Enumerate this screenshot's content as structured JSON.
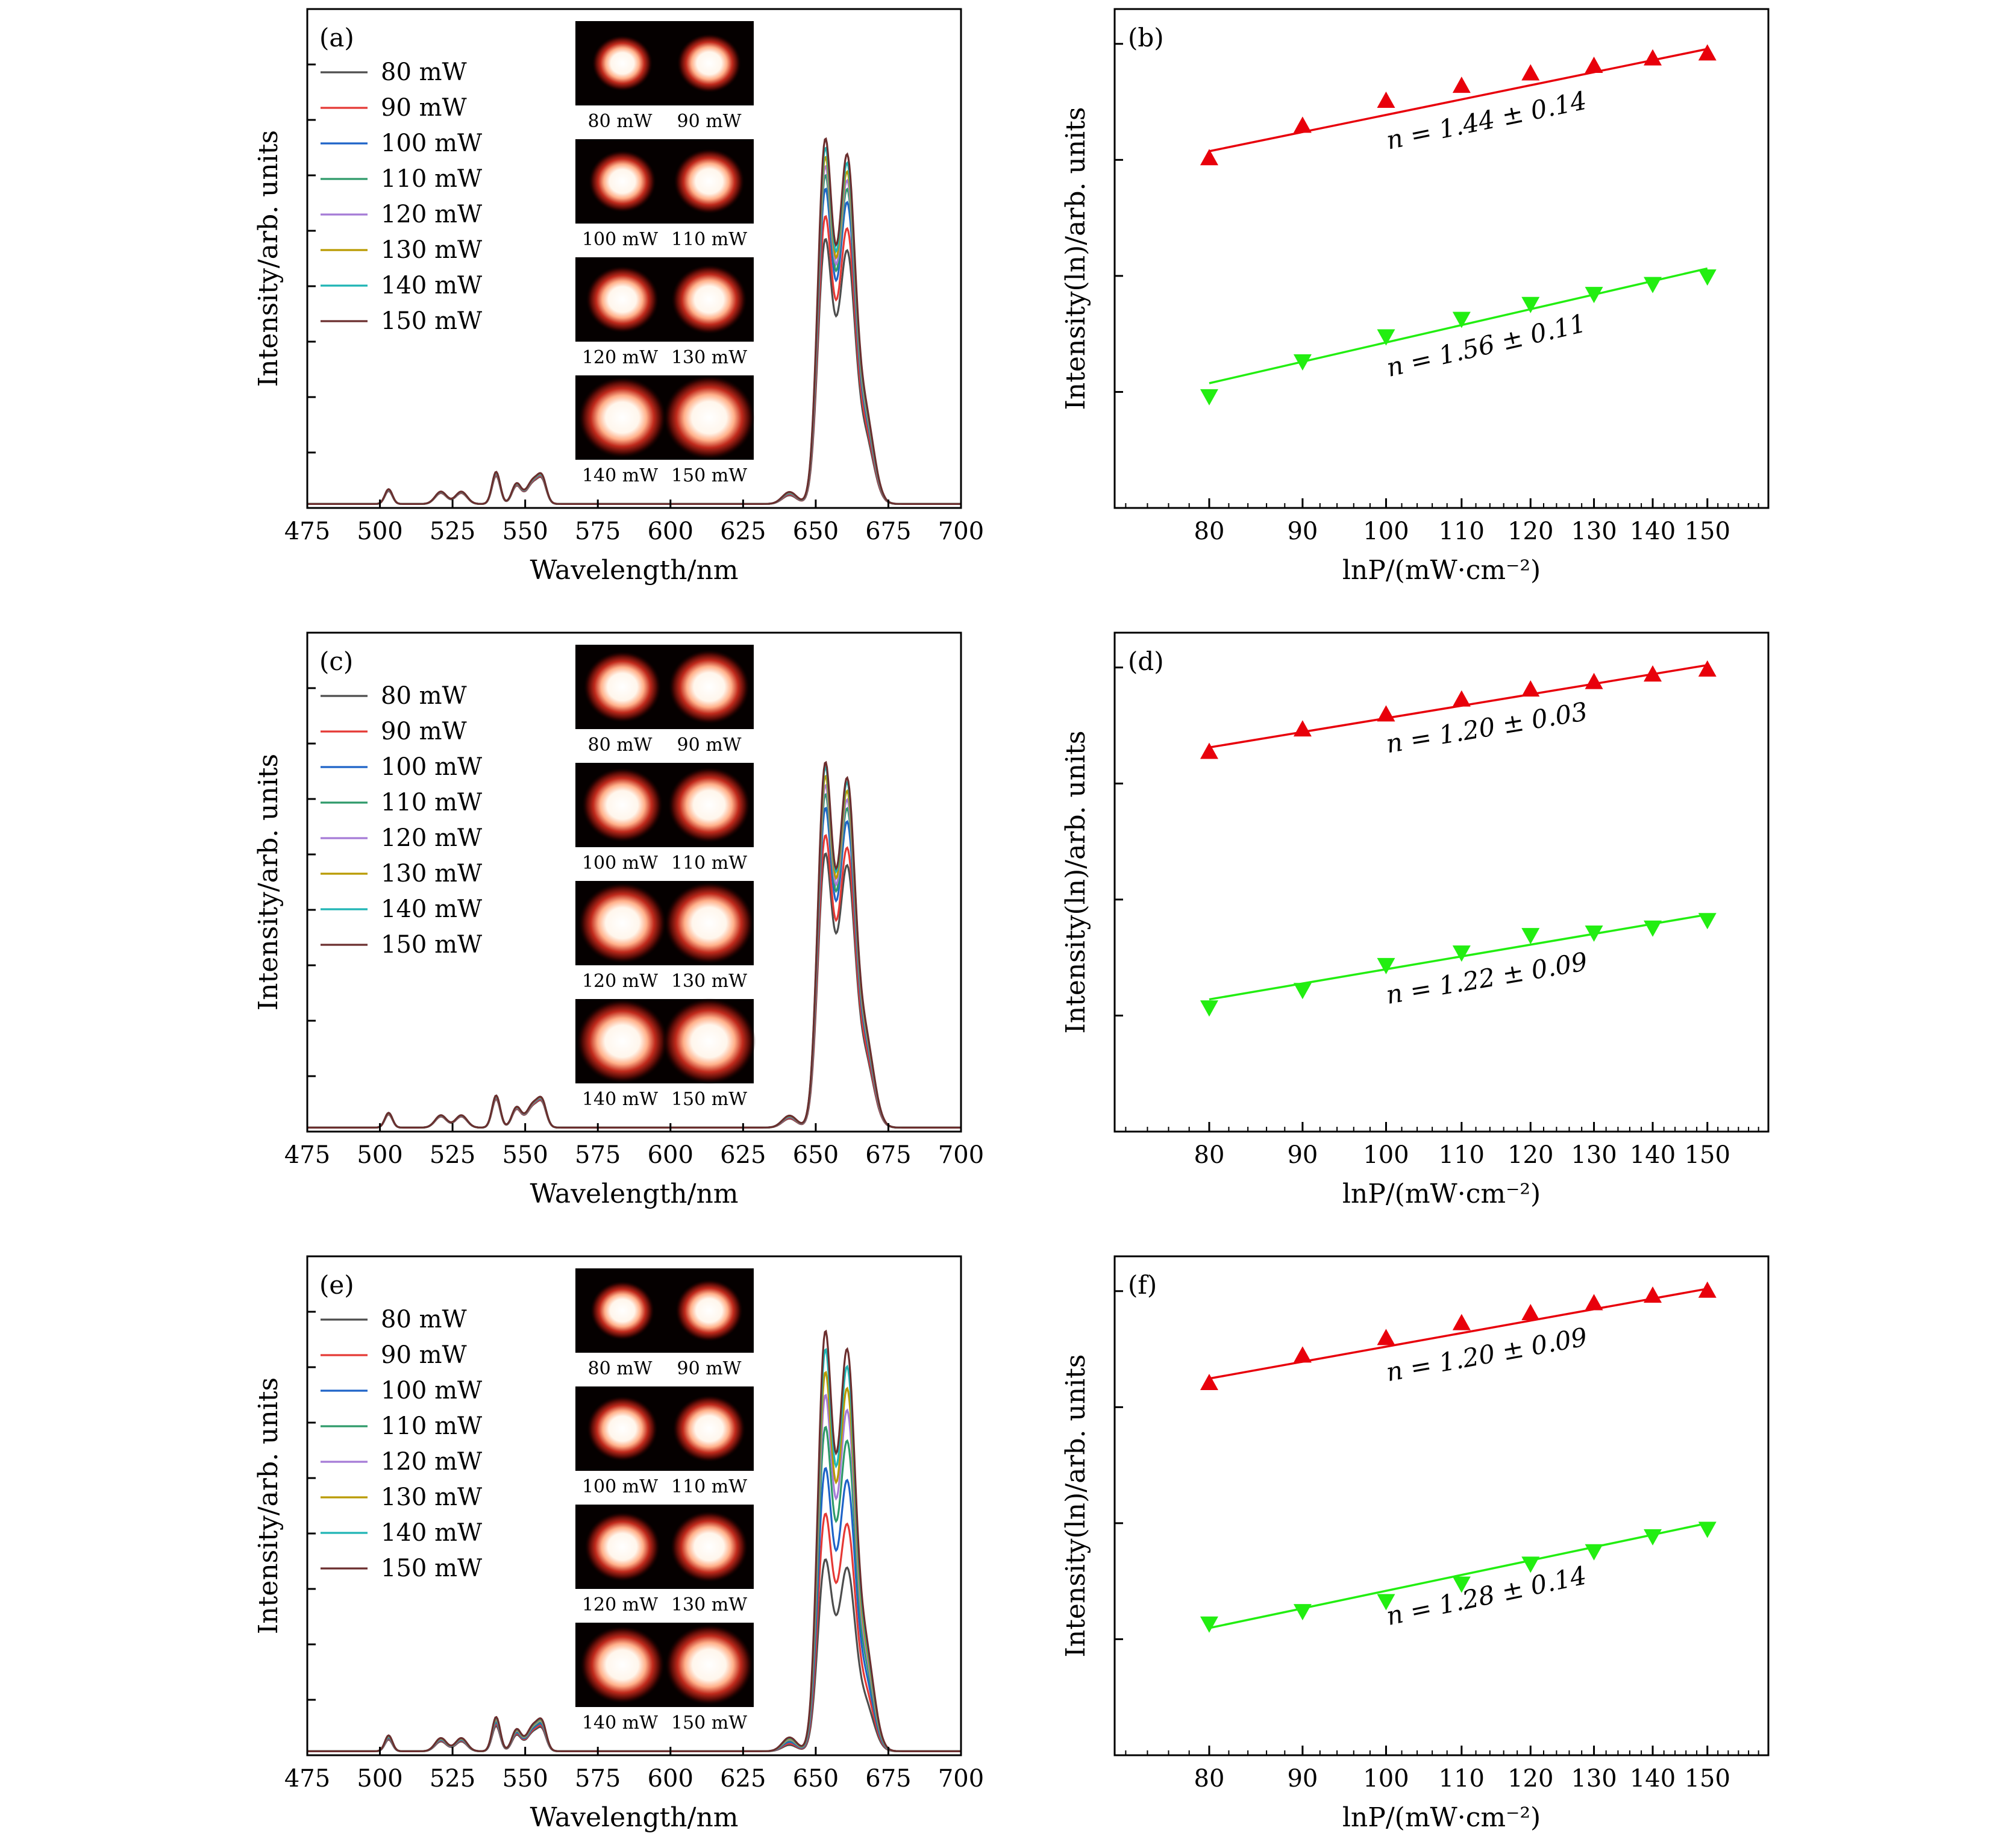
{
  "chart_data": [
    {
      "panel": "(a)",
      "type": "line",
      "xlabel": "Wavelength/nm",
      "ylabel": "Intensity/arb. units",
      "xlim": [
        475,
        700
      ],
      "xticks": [
        475,
        500,
        525,
        550,
        575,
        600,
        625,
        650,
        675,
        700
      ],
      "ylim": [
        0,
        1
      ],
      "y_minor_tick_count": 8,
      "legend_position": "upper-left",
      "series": [
        {
          "name": "80 mW",
          "color": "#4d4d4d",
          "peak_scale": 0.58
        },
        {
          "name": "90 mW",
          "color": "#e53935",
          "peak_scale": 0.63
        },
        {
          "name": "100 mW",
          "color": "#1e63c8",
          "peak_scale": 0.69
        },
        {
          "name": "110 mW",
          "color": "#2e9a6a",
          "peak_scale": 0.72
        },
        {
          "name": "120 mW",
          "color": "#a57bd6",
          "peak_scale": 0.74
        },
        {
          "name": "130 mW",
          "color": "#b99a00",
          "peak_scale": 0.76
        },
        {
          "name": "140 mW",
          "color": "#1fb5b5",
          "peak_scale": 0.78
        },
        {
          "name": "150 mW",
          "color": "#6b2e2e",
          "peak_scale": 0.8
        }
      ],
      "peaks": [
        {
          "center": 503,
          "width": 1.3,
          "height": 0.03
        },
        {
          "center": 521,
          "width": 2.0,
          "height": 0.025
        },
        {
          "center": 528,
          "width": 2.0,
          "height": 0.025
        },
        {
          "center": 540,
          "width": 1.4,
          "height": 0.065
        },
        {
          "center": 547,
          "width": 1.6,
          "height": 0.04
        },
        {
          "center": 553,
          "width": 2.4,
          "height": 0.05
        },
        {
          "center": 556,
          "width": 1.4,
          "height": 0.035
        },
        {
          "center": 641,
          "width": 2.5,
          "height": 0.03
        },
        {
          "center": 653,
          "width": 2.4,
          "height": 0.84
        },
        {
          "center": 657,
          "width": 2.6,
          "height": 0.2
        },
        {
          "center": 661,
          "width": 2.6,
          "height": 0.78
        },
        {
          "center": 667,
          "width": 3.0,
          "height": 0.22
        }
      ],
      "inset": {
        "image_labels": [
          [
            "80 mW",
            "90 mW"
          ],
          [
            "100 mW",
            "110 mW"
          ],
          [
            "120 mW",
            "130 mW"
          ],
          [
            "140 mW",
            "150 mW"
          ]
        ],
        "glow": [
          0.9,
          0.95,
          1.0,
          1.05,
          1.08,
          1.12,
          1.3,
          1.35
        ]
      }
    },
    {
      "panel": "(b)",
      "type": "scatter",
      "xlabel": "lnP/(mW·cm⁻²)",
      "ylabel": "Intensity(ln)/arb. units",
      "x_scale": "log",
      "xlim": [
        71,
        162
      ],
      "xticks": [
        80,
        90,
        100,
        110,
        120,
        130,
        140,
        150
      ],
      "ylim": [
        0,
        1
      ],
      "y_minor_tick_count": 4,
      "series": [
        {
          "name": "",
          "marker": "triangle-up",
          "color": "#e8000b",
          "x": [
            80,
            90,
            100,
            110,
            120,
            130,
            140,
            150
          ],
          "y": [
            0.7,
            0.765,
            0.815,
            0.845,
            0.87,
            0.885,
            0.9,
            0.91
          ],
          "fit": [
            0.715,
            0.92
          ],
          "slope_text": "n = 1.44 ± 0.14"
        },
        {
          "name": "",
          "marker": "triangle-down",
          "color": "#22ee11",
          "x": [
            80,
            90,
            100,
            110,
            120,
            130,
            140,
            150
          ],
          "y": [
            0.225,
            0.295,
            0.345,
            0.38,
            0.41,
            0.43,
            0.45,
            0.465
          ],
          "fit": [
            0.25,
            0.48
          ],
          "slope_text": "n = 1.56 ± 0.11"
        }
      ]
    },
    {
      "panel": "(c)",
      "type": "line",
      "xlabel": "Wavelength/nm",
      "ylabel": "Intensity/arb. units",
      "xlim": [
        475,
        700
      ],
      "xticks": [
        475,
        500,
        525,
        550,
        575,
        600,
        625,
        650,
        675,
        700
      ],
      "ylim": [
        0,
        1
      ],
      "y_minor_tick_count": 8,
      "legend_position": "upper-left",
      "series": [
        {
          "name": "80 mW",
          "color": "#4d4d4d",
          "peak_scale": 0.6
        },
        {
          "name": "90 mW",
          "color": "#e53935",
          "peak_scale": 0.64
        },
        {
          "name": "100 mW",
          "color": "#1e63c8",
          "peak_scale": 0.7
        },
        {
          "name": "110 mW",
          "color": "#2e9a6a",
          "peak_scale": 0.73
        },
        {
          "name": "120 mW",
          "color": "#a57bd6",
          "peak_scale": 0.75
        },
        {
          "name": "130 mW",
          "color": "#b99a00",
          "peak_scale": 0.77
        },
        {
          "name": "140 mW",
          "color": "#1fb5b5",
          "peak_scale": 0.79
        },
        {
          "name": "150 mW",
          "color": "#6b2e2e",
          "peak_scale": 0.8
        }
      ],
      "peaks": [
        {
          "center": 503,
          "width": 1.3,
          "height": 0.03
        },
        {
          "center": 521,
          "width": 2.0,
          "height": 0.025
        },
        {
          "center": 528,
          "width": 2.0,
          "height": 0.025
        },
        {
          "center": 540,
          "width": 1.4,
          "height": 0.065
        },
        {
          "center": 547,
          "width": 1.6,
          "height": 0.04
        },
        {
          "center": 553,
          "width": 2.4,
          "height": 0.05
        },
        {
          "center": 556,
          "width": 1.4,
          "height": 0.035
        },
        {
          "center": 641,
          "width": 2.5,
          "height": 0.03
        },
        {
          "center": 653,
          "width": 2.4,
          "height": 0.84
        },
        {
          "center": 657,
          "width": 2.6,
          "height": 0.2
        },
        {
          "center": 661,
          "width": 2.6,
          "height": 0.78
        },
        {
          "center": 667,
          "width": 3.0,
          "height": 0.22
        }
      ],
      "inset": {
        "image_labels": [
          [
            "80 mW",
            "90 mW"
          ],
          [
            "100 mW",
            "110 mW"
          ],
          [
            "120 mW",
            "130 mW"
          ],
          [
            "140 mW",
            "150 mW"
          ]
        ],
        "glow": [
          1.15,
          1.2,
          1.2,
          1.22,
          1.3,
          1.32,
          1.35,
          1.38
        ]
      }
    },
    {
      "panel": "(d)",
      "type": "scatter",
      "xlabel": "lnP/(mW·cm⁻²)",
      "ylabel": "Intensity(ln)/arb. units",
      "x_scale": "log",
      "xlim": [
        71,
        162
      ],
      "xticks": [
        80,
        90,
        100,
        110,
        120,
        130,
        140,
        150
      ],
      "ylim": [
        0,
        1
      ],
      "y_minor_tick_count": 4,
      "series": [
        {
          "name": "",
          "marker": "triangle-up",
          "color": "#e8000b",
          "x": [
            80,
            90,
            100,
            110,
            120,
            130,
            140,
            150
          ],
          "y": [
            0.76,
            0.805,
            0.835,
            0.865,
            0.885,
            0.9,
            0.915,
            0.925
          ],
          "fit": [
            0.77,
            0.935
          ],
          "slope_text": "n = 1.20 ± 0.03"
        },
        {
          "name": "",
          "marker": "triangle-down",
          "color": "#22ee11",
          "x": [
            80,
            90,
            100,
            110,
            120,
            130,
            140,
            150
          ],
          "y": [
            0.25,
            0.285,
            0.335,
            0.36,
            0.395,
            0.4,
            0.41,
            0.425
          ],
          "fit": [
            0.265,
            0.435
          ],
          "slope_text": "n = 1.22 ± 0.09"
        }
      ]
    },
    {
      "panel": "(e)",
      "type": "line",
      "xlabel": "Wavelength/nm",
      "ylabel": "Intensity/arb. units",
      "xlim": [
        475,
        700
      ],
      "xticks": [
        475,
        500,
        525,
        550,
        575,
        600,
        625,
        650,
        675,
        700
      ],
      "ylim": [
        0,
        1
      ],
      "y_minor_tick_count": 8,
      "legend_position": "upper-left",
      "series": [
        {
          "name": "80 mW",
          "color": "#4d4d4d",
          "peak_scale": 0.42
        },
        {
          "name": "90 mW",
          "color": "#e53935",
          "peak_scale": 0.52
        },
        {
          "name": "100 mW",
          "color": "#1e63c8",
          "peak_scale": 0.62
        },
        {
          "name": "110 mW",
          "color": "#2e9a6a",
          "peak_scale": 0.71
        },
        {
          "name": "120 mW",
          "color": "#a57bd6",
          "peak_scale": 0.78
        },
        {
          "name": "130 mW",
          "color": "#b99a00",
          "peak_scale": 0.83
        },
        {
          "name": "140 mW",
          "color": "#1fb5b5",
          "peak_scale": 0.88
        },
        {
          "name": "150 mW",
          "color": "#6b2e2e",
          "peak_scale": 0.92
        }
      ],
      "peaks": [
        {
          "center": 503,
          "width": 1.3,
          "height": 0.03
        },
        {
          "center": 521,
          "width": 2.0,
          "height": 0.025
        },
        {
          "center": 528,
          "width": 2.0,
          "height": 0.025
        },
        {
          "center": 540,
          "width": 1.4,
          "height": 0.065
        },
        {
          "center": 547,
          "width": 1.6,
          "height": 0.04
        },
        {
          "center": 553,
          "width": 2.4,
          "height": 0.05
        },
        {
          "center": 556,
          "width": 1.4,
          "height": 0.035
        },
        {
          "center": 641,
          "width": 2.5,
          "height": 0.03
        },
        {
          "center": 653,
          "width": 2.4,
          "height": 0.84
        },
        {
          "center": 657,
          "width": 2.6,
          "height": 0.2
        },
        {
          "center": 661,
          "width": 2.6,
          "height": 0.78
        },
        {
          "center": 667,
          "width": 3.0,
          "height": 0.22
        }
      ],
      "inset": {
        "image_labels": [
          [
            "80 mW",
            "90 mW"
          ],
          [
            "100 mW",
            "110 mW"
          ],
          [
            "120 mW",
            "130 mW"
          ],
          [
            "140 mW",
            "150 mW"
          ]
        ],
        "glow": [
          0.95,
          1.0,
          1.05,
          1.08,
          1.12,
          1.15,
          1.25,
          1.3
        ]
      }
    },
    {
      "panel": "(f)",
      "type": "scatter",
      "xlabel": "lnP/(mW·cm⁻²)",
      "ylabel": "Intensity(ln)/arb. units",
      "x_scale": "log",
      "xlim": [
        71,
        162
      ],
      "xticks": [
        80,
        90,
        100,
        110,
        120,
        130,
        140,
        150
      ],
      "ylim": [
        0,
        1
      ],
      "y_minor_tick_count": 4,
      "series": [
        {
          "name": "",
          "marker": "triangle-up",
          "color": "#e8000b",
          "x": [
            80,
            90,
            100,
            110,
            120,
            130,
            140,
            150
          ],
          "y": [
            0.745,
            0.8,
            0.835,
            0.865,
            0.885,
            0.905,
            0.92,
            0.93
          ],
          "fit": [
            0.755,
            0.935
          ],
          "slope_text": "n = 1.20 ± 0.09"
        },
        {
          "name": "",
          "marker": "triangle-down",
          "color": "#22ee11",
          "x": [
            80,
            90,
            100,
            110,
            120,
            130,
            140,
            150
          ],
          "y": [
            0.265,
            0.29,
            0.31,
            0.345,
            0.385,
            0.41,
            0.44,
            0.455
          ],
          "fit": [
            0.255,
            0.465
          ],
          "slope_text": "n = 1.28 ± 0.14"
        }
      ]
    }
  ]
}
